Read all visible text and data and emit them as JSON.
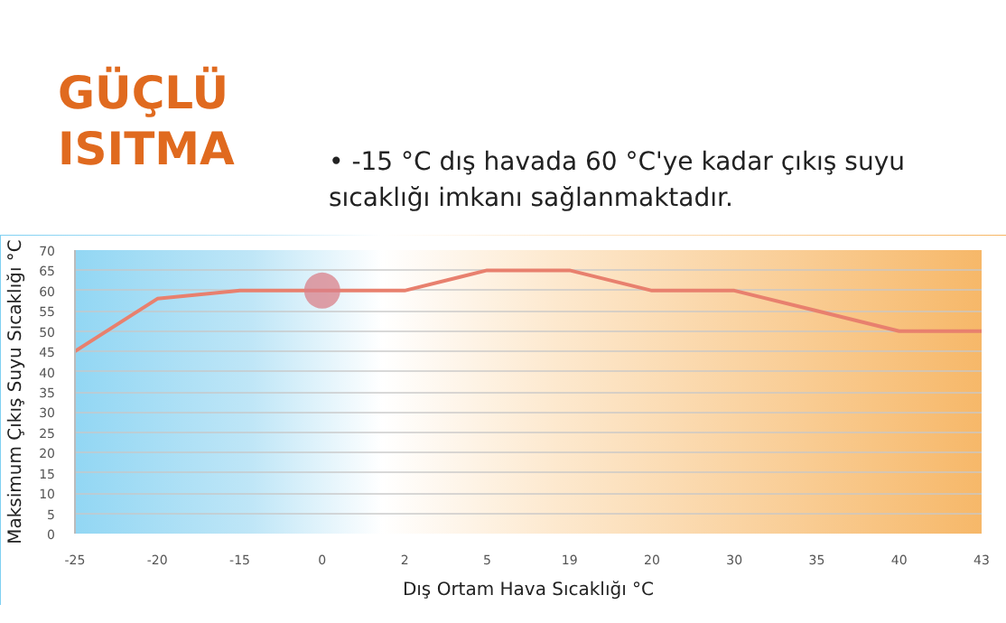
{
  "chart_data": {
    "type": "line",
    "title": "GÜÇLÜ ISITMA",
    "subtitle": "• -15 °C dış havada 60 °C'ye kadar çıkış suyu sıcaklığı imkanı sağlanmaktadır.",
    "xlabel": "Dış Ortam Hava Sıcaklığı °C",
    "ylabel": "Maksimum Çıkış Suyu Sıcaklığı °C",
    "categories": [
      "-25",
      "-20",
      "-15",
      "0",
      "2",
      "5",
      "19",
      "20",
      "30",
      "35",
      "40",
      "43"
    ],
    "series": [
      {
        "color": "#e8806e",
        "values": [
          45,
          58,
          60,
          60,
          60,
          65,
          65,
          60,
          60,
          55,
          50,
          50
        ]
      },
      {
        "type": "scatter",
        "color": "#d9808a",
        "values": [
          null,
          null,
          null,
          60,
          null,
          null,
          null,
          null,
          null,
          null,
          null,
          null
        ]
      }
    ],
    "ylim": [
      0,
      70
    ],
    "yticks": [
      0,
      5,
      10,
      15,
      20,
      25,
      30,
      35,
      40,
      45,
      50,
      55,
      60,
      65,
      70
    ],
    "grid": "y",
    "line_style": "solid"
  }
}
